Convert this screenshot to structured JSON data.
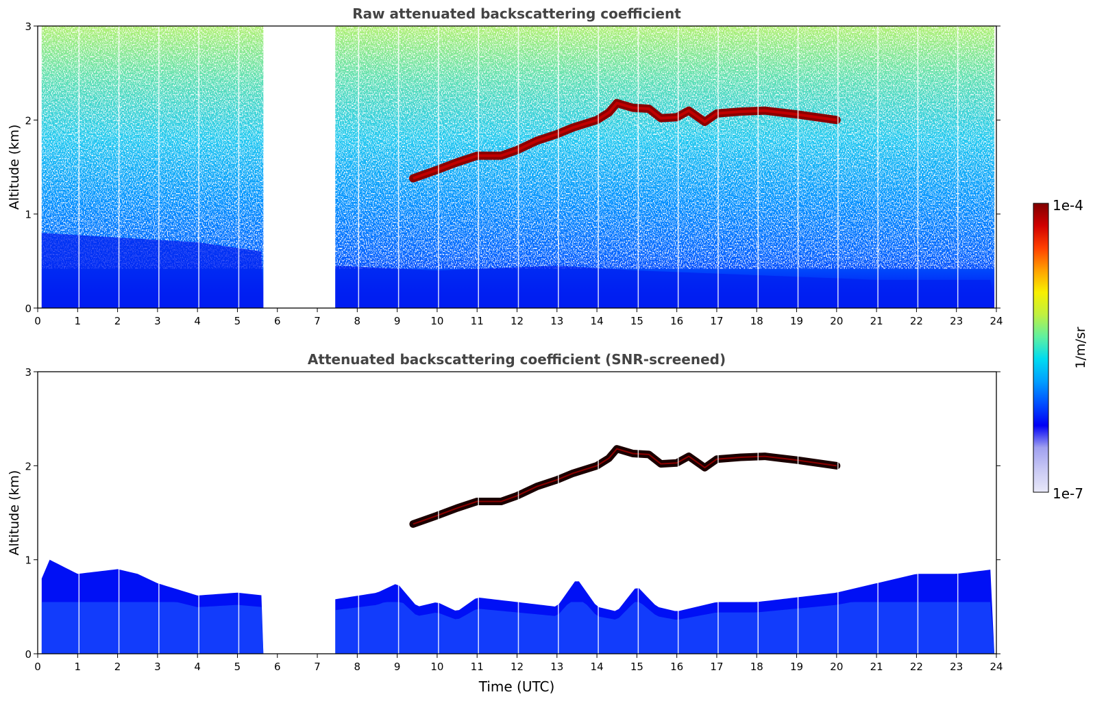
{
  "figure": {
    "colorbar": {
      "label": "1/m/sr",
      "max_label": "1e-4",
      "min_label": "1e-7",
      "scale": "log",
      "range": [
        1e-07,
        0.0001
      ],
      "colormap": [
        "#e8e8f8",
        "#c9c9f4",
        "#a0a0f0",
        "#0000f5",
        "#0050ff",
        "#00a0ff",
        "#00dcf0",
        "#60f0a0",
        "#c0f040",
        "#f8f000",
        "#ffa000",
        "#ff4000",
        "#d00000",
        "#800000"
      ]
    },
    "xlabel": "Time (UTC)"
  },
  "chart_data": [
    {
      "type": "heatmap",
      "title": "Raw attenuated backscattering coefficient",
      "xlabel": "",
      "ylabel": "Altitude (km)",
      "xlim": [
        0,
        24
      ],
      "ylim": [
        0,
        3
      ],
      "xticks": [
        "0",
        "1",
        "2",
        "3",
        "4",
        "5",
        "6",
        "7",
        "8",
        "9",
        "10",
        "11",
        "12",
        "13",
        "14",
        "15",
        "16",
        "17",
        "18",
        "19",
        "20",
        "21",
        "22",
        "23",
        "24"
      ],
      "yticks": [
        "0",
        "1",
        "2",
        "3"
      ],
      "data_gaps_hours": [
        [
          0,
          0.1
        ],
        [
          5.65,
          7.45
        ],
        [
          23.95,
          24
        ]
      ],
      "boundary_layer_top_km": [
        [
          0.1,
          0.8
        ],
        [
          2,
          0.75
        ],
        [
          4,
          0.7
        ],
        [
          5.65,
          0.6
        ],
        [
          7.45,
          0.45
        ],
        [
          10,
          0.4
        ],
        [
          13,
          0.45
        ],
        [
          15,
          0.4
        ],
        [
          18,
          0.35
        ],
        [
          21,
          0.3
        ],
        [
          23.95,
          0.3
        ]
      ],
      "cloud_layer": [
        [
          9.4,
          1.38
        ],
        [
          10,
          1.47
        ],
        [
          10.5,
          1.55
        ],
        [
          11,
          1.62
        ],
        [
          11.6,
          1.62
        ],
        [
          12,
          1.68
        ],
        [
          12.5,
          1.78
        ],
        [
          13,
          1.85
        ],
        [
          13.4,
          1.92
        ],
        [
          14,
          2.0
        ],
        [
          14.3,
          2.08
        ],
        [
          14.5,
          2.18
        ],
        [
          14.9,
          2.13
        ],
        [
          15.3,
          2.12
        ],
        [
          15.6,
          2.02
        ],
        [
          16,
          2.03
        ],
        [
          16.3,
          2.1
        ],
        [
          16.7,
          1.98
        ],
        [
          17,
          2.07
        ],
        [
          17.6,
          2.09
        ],
        [
          18.2,
          2.1
        ],
        [
          19,
          2.06
        ],
        [
          20,
          2.0
        ]
      ]
    },
    {
      "type": "heatmap",
      "title": "Attenuated backscattering coefficient (SNR-screened)",
      "xlabel": "Time (UTC)",
      "ylabel": "Altitude (km)",
      "xlim": [
        0,
        24
      ],
      "ylim": [
        0,
        3
      ],
      "xticks": [
        "0",
        "1",
        "2",
        "3",
        "4",
        "5",
        "6",
        "7",
        "8",
        "9",
        "10",
        "11",
        "12",
        "13",
        "14",
        "15",
        "16",
        "17",
        "18",
        "19",
        "20",
        "21",
        "22",
        "23",
        "24"
      ],
      "yticks": [
        "0",
        "1",
        "2",
        "3"
      ],
      "data_gaps_hours": [
        [
          0,
          0.1
        ],
        [
          5.65,
          7.45
        ],
        [
          23.95,
          24
        ]
      ],
      "screened_top_km": [
        [
          0.1,
          0.8
        ],
        [
          0.3,
          1.0
        ],
        [
          1,
          0.85
        ],
        [
          2,
          0.9
        ],
        [
          2.5,
          0.85
        ],
        [
          3,
          0.75
        ],
        [
          4,
          0.62
        ],
        [
          5,
          0.65
        ],
        [
          5.65,
          0.62
        ],
        [
          7.45,
          0.58
        ],
        [
          8.5,
          0.65
        ],
        [
          9,
          0.75
        ],
        [
          9.5,
          0.5
        ],
        [
          10,
          0.55
        ],
        [
          10.5,
          0.45
        ],
        [
          11,
          0.6
        ],
        [
          12,
          0.55
        ],
        [
          13,
          0.5
        ],
        [
          13.5,
          0.8
        ],
        [
          14,
          0.5
        ],
        [
          14.5,
          0.45
        ],
        [
          15,
          0.72
        ],
        [
          15.5,
          0.5
        ],
        [
          16,
          0.45
        ],
        [
          17,
          0.55
        ],
        [
          18,
          0.55
        ],
        [
          19,
          0.6
        ],
        [
          20,
          0.65
        ],
        [
          21,
          0.75
        ],
        [
          22,
          0.85
        ],
        [
          23,
          0.85
        ],
        [
          23.95,
          0.9
        ]
      ],
      "cloud_layer": [
        [
          9.4,
          1.38
        ],
        [
          10,
          1.47
        ],
        [
          10.5,
          1.55
        ],
        [
          11,
          1.62
        ],
        [
          11.6,
          1.62
        ],
        [
          12,
          1.68
        ],
        [
          12.5,
          1.78
        ],
        [
          13,
          1.85
        ],
        [
          13.4,
          1.92
        ],
        [
          14,
          2.0
        ],
        [
          14.3,
          2.08
        ],
        [
          14.5,
          2.18
        ],
        [
          14.9,
          2.13
        ],
        [
          15.3,
          2.12
        ],
        [
          15.6,
          2.02
        ],
        [
          16,
          2.03
        ],
        [
          16.3,
          2.1
        ],
        [
          16.7,
          1.98
        ],
        [
          17,
          2.07
        ],
        [
          17.6,
          2.09
        ],
        [
          18.2,
          2.1
        ],
        [
          19,
          2.06
        ],
        [
          20,
          2.0
        ]
      ]
    }
  ]
}
